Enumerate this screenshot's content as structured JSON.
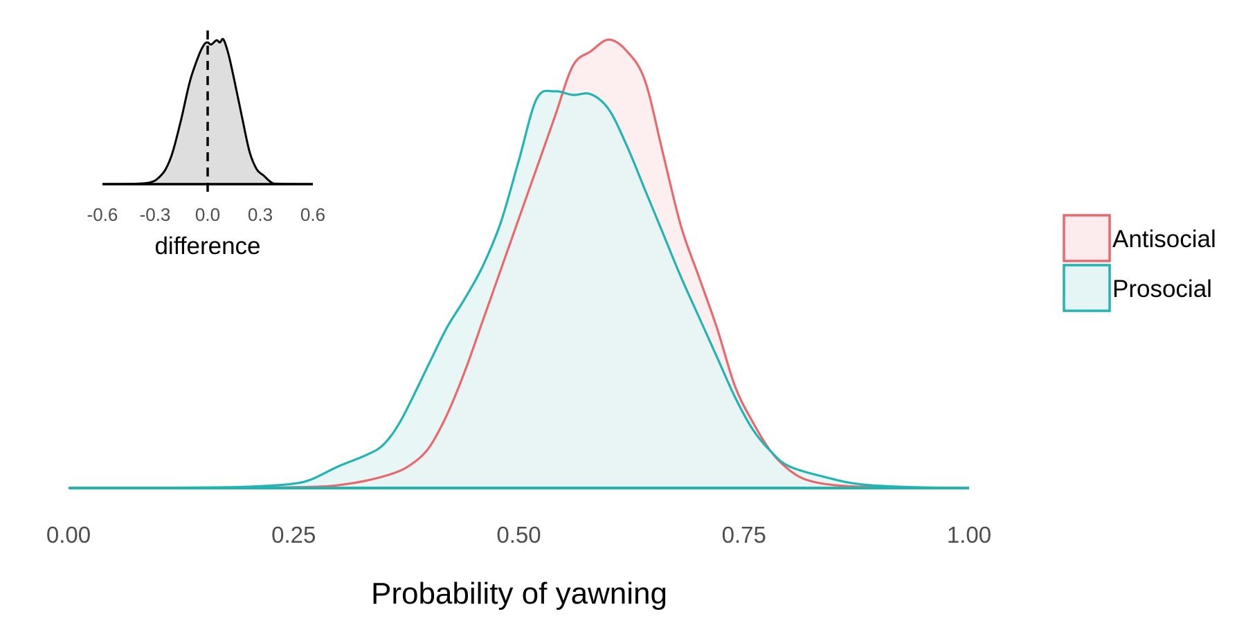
{
  "chart_data": [
    {
      "type": "area",
      "title": "",
      "xlabel": "Probability of yawning",
      "ylabel": "",
      "xlim": [
        0,
        1
      ],
      "x_ticks": [
        "0.00",
        "0.25",
        "0.50",
        "0.75",
        "1.00"
      ],
      "x_tick_values": [
        0,
        0.25,
        0.5,
        0.75,
        1.0
      ],
      "ylim": [
        0,
        6.2
      ],
      "grid": false,
      "legend_position": "right",
      "series": [
        {
          "name": "Antisocial",
          "color": "#e8686c",
          "fill": "#fdeced",
          "x": [
            0,
            0.1,
            0.2,
            0.25,
            0.28,
            0.3,
            0.33,
            0.36,
            0.38,
            0.4,
            0.42,
            0.44,
            0.46,
            0.48,
            0.5,
            0.52,
            0.54,
            0.56,
            0.58,
            0.6,
            0.62,
            0.64,
            0.66,
            0.68,
            0.7,
            0.72,
            0.74,
            0.76,
            0.78,
            0.8,
            0.82,
            0.85,
            0.9,
            1.0
          ],
          "y": [
            0,
            0,
            0.003,
            0.01,
            0.02,
            0.04,
            0.1,
            0.2,
            0.32,
            0.55,
            1.0,
            1.6,
            2.3,
            3.0,
            3.7,
            4.4,
            5.1,
            5.8,
            6.0,
            6.16,
            6.0,
            5.6,
            4.6,
            3.6,
            2.9,
            2.2,
            1.4,
            0.9,
            0.5,
            0.25,
            0.11,
            0.04,
            0.01,
            0
          ]
        },
        {
          "name": "Prosocial",
          "color": "#22b3b3",
          "fill": "#e5f5f5",
          "x": [
            0,
            0.1,
            0.18,
            0.22,
            0.25,
            0.27,
            0.3,
            0.33,
            0.35,
            0.37,
            0.4,
            0.42,
            0.44,
            0.46,
            0.48,
            0.5,
            0.52,
            0.54,
            0.56,
            0.58,
            0.6,
            0.62,
            0.64,
            0.66,
            0.68,
            0.7,
            0.72,
            0.74,
            0.76,
            0.78,
            0.8,
            0.84,
            0.88,
            0.94,
            1.0
          ],
          "y": [
            0,
            0.002,
            0.01,
            0.03,
            0.06,
            0.12,
            0.3,
            0.45,
            0.6,
            0.95,
            1.7,
            2.2,
            2.6,
            3.05,
            3.65,
            4.5,
            5.35,
            5.45,
            5.4,
            5.41,
            5.2,
            4.7,
            4.1,
            3.5,
            2.9,
            2.35,
            1.8,
            1.25,
            0.8,
            0.5,
            0.3,
            0.15,
            0.05,
            0.01,
            0
          ]
        }
      ]
    },
    {
      "type": "area",
      "title": "",
      "xlabel": "difference",
      "ylabel": "",
      "xlim": [
        -0.6,
        0.6
      ],
      "x_ticks": [
        "-0.6",
        "-0.3",
        "0.0",
        "0.3",
        "0.6"
      ],
      "x_tick_values": [
        -0.6,
        -0.3,
        0.0,
        0.3,
        0.6
      ],
      "ylim": [
        0,
        3.6
      ],
      "grid": false,
      "reference_line": {
        "x": 0.0,
        "style": "dashed"
      },
      "series": [
        {
          "color": "#000000",
          "fill": "#dedede",
          "x": [
            -0.6,
            -0.4,
            -0.32,
            -0.28,
            -0.24,
            -0.2,
            -0.15,
            -0.1,
            -0.05,
            -0.02,
            0.0,
            0.02,
            0.05,
            0.07,
            0.09,
            0.12,
            0.16,
            0.2,
            0.24,
            0.28,
            0.32,
            0.36,
            0.4,
            0.6
          ],
          "y": [
            0,
            0.01,
            0.05,
            0.15,
            0.35,
            0.75,
            1.55,
            2.45,
            3.05,
            3.3,
            3.35,
            3.3,
            3.4,
            3.35,
            3.42,
            3.05,
            2.3,
            1.5,
            0.75,
            0.35,
            0.2,
            0.05,
            0.01,
            0
          ]
        }
      ]
    }
  ],
  "legend": {
    "items": [
      {
        "label": "Antisocial",
        "color": "#e8686c",
        "fill": "#fdeced"
      },
      {
        "label": "Prosocial",
        "color": "#22b3b3",
        "fill": "#e5f5f5"
      }
    ]
  }
}
